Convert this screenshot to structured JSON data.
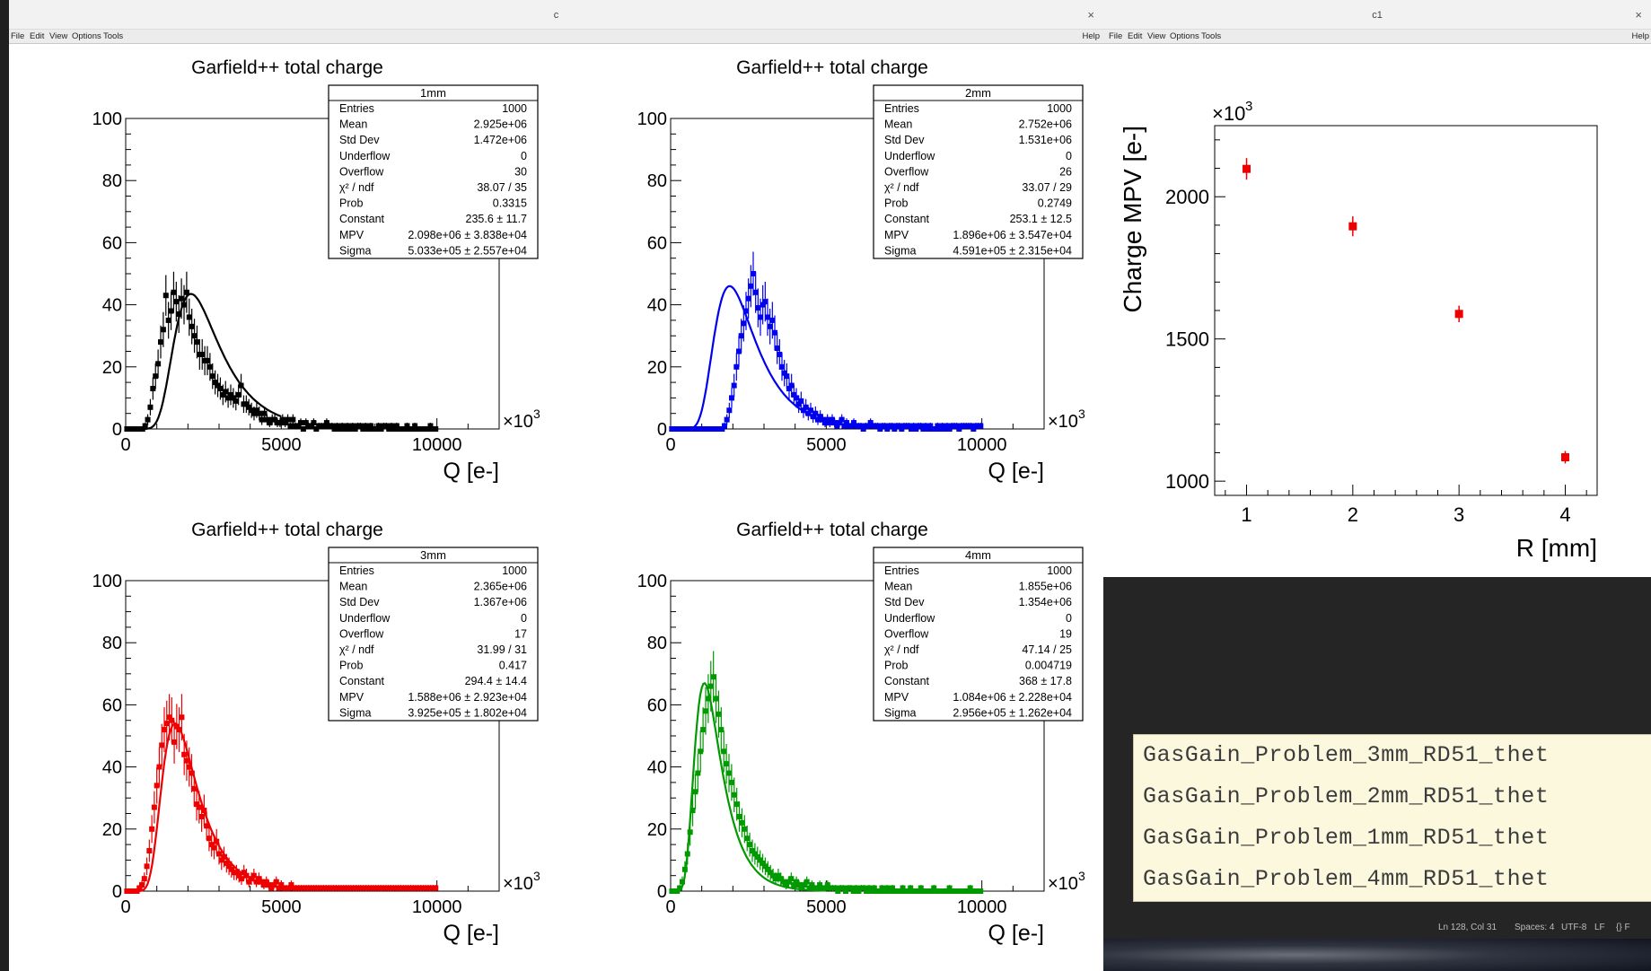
{
  "window_left": {
    "title": "c",
    "close_glyph": "×",
    "menu": [
      "File",
      "Edit",
      "View",
      "Options",
      "Tools"
    ],
    "help": "Help"
  },
  "window_right": {
    "title": "c1",
    "close_glyph": "×",
    "menu": [
      "File",
      "Edit",
      "View",
      "Options",
      "Tools"
    ],
    "help": "Help"
  },
  "chart_data": [
    {
      "type": "bar",
      "title": "Garfield++ total charge",
      "xlabel": "Q [e-]",
      "x_multiplier": "×10",
      "x_multiplier_exp": "3",
      "xlim": [
        0,
        12000
      ],
      "ylim": [
        0,
        100
      ],
      "xticks": [
        "0",
        "5000",
        "10000"
      ],
      "yticks": [
        "0",
        "20",
        "40",
        "60",
        "80",
        "100"
      ],
      "color": "#000000",
      "stats": {
        "name": "1mm",
        "rows": [
          [
            "Entries",
            "1000"
          ],
          [
            "Mean",
            "2.925e+06"
          ],
          [
            "Std Dev",
            "1.472e+06"
          ],
          [
            "Underflow",
            "0"
          ],
          [
            "Overflow",
            "30"
          ],
          [
            "χ² / ndf",
            "38.07 / 35"
          ],
          [
            "Prob",
            "0.3315"
          ],
          [
            "Constant",
            "235.6 ± 11.7"
          ],
          [
            "MPV",
            "2.098e+06 ± 3.838e+04"
          ],
          [
            "Sigma",
            "5.033e+05 ± 2.557e+04"
          ]
        ]
      },
      "fit": {
        "constant": 43.5,
        "mpv": 2098,
        "sigma": 503.3
      },
      "values": [
        0,
        0,
        0,
        0,
        0,
        0,
        0,
        1,
        3,
        7,
        13,
        17,
        21,
        28,
        32,
        43,
        35,
        38,
        44,
        41,
        37,
        42,
        40,
        44,
        36,
        33,
        30,
        28,
        24,
        24,
        22,
        22,
        20,
        17,
        15,
        14,
        13,
        11,
        12,
        10,
        11,
        10,
        9,
        11,
        14,
        8,
        8,
        7,
        6,
        5,
        6,
        5,
        3,
        5,
        3,
        2,
        3,
        3,
        2,
        2,
        3,
        2,
        3,
        1,
        3,
        1,
        1,
        2,
        0,
        2,
        1,
        1,
        2,
        0,
        1,
        1,
        1,
        2,
        1,
        1,
        0,
        1,
        0,
        1,
        0,
        1,
        0,
        1,
        0,
        1,
        1,
        0,
        1,
        0,
        1,
        0,
        0,
        1,
        0,
        1,
        1,
        0,
        1,
        0,
        1,
        0,
        0,
        0,
        1,
        0,
        0,
        1,
        0,
        0,
        0,
        0,
        0,
        1,
        0,
        0
      ]
    },
    {
      "type": "bar",
      "title": "Garfield++ total charge",
      "xlabel": "Q [e-]",
      "x_multiplier": "×10",
      "x_multiplier_exp": "3",
      "xlim": [
        0,
        12000
      ],
      "ylim": [
        0,
        100
      ],
      "xticks": [
        "0",
        "5000",
        "10000"
      ],
      "yticks": [
        "0",
        "20",
        "40",
        "60",
        "80",
        "100"
      ],
      "color": "#0000ee",
      "stats": {
        "name": "2mm",
        "rows": [
          [
            "Entries",
            "1000"
          ],
          [
            "Mean",
            "2.752e+06"
          ],
          [
            "Std Dev",
            "1.531e+06"
          ],
          [
            "Underflow",
            "0"
          ],
          [
            "Overflow",
            "26"
          ],
          [
            "χ² / ndf",
            "33.07 / 29"
          ],
          [
            "Prob",
            "0.2749"
          ],
          [
            "Constant",
            "253.1 ± 12.5"
          ],
          [
            "MPV",
            "1.896e+06 ± 3.547e+04"
          ],
          [
            "Sigma",
            "4.591e+05 ± 2.315e+04"
          ]
        ]
      },
      "fit": {
        "constant": 46,
        "mpv": 1896,
        "sigma": 459.1
      },
      "values": [
        0,
        0,
        0,
        0,
        0,
        0,
        0,
        0,
        0,
        0,
        0,
        0,
        0,
        0,
        0,
        0,
        0,
        0,
        0,
        0,
        0,
        0,
        1,
        3,
        6,
        10,
        14,
        20,
        25,
        30,
        34,
        38,
        42,
        46,
        50,
        44,
        39,
        36,
        40,
        41,
        36,
        33,
        35,
        31,
        26,
        24,
        20,
        18,
        17,
        13,
        14,
        11,
        10,
        8,
        9,
        6,
        7,
        5,
        6,
        4,
        5,
        3,
        4,
        3,
        2,
        3,
        2,
        3,
        2,
        1,
        2,
        3,
        1,
        2,
        1,
        1,
        2,
        1,
        1,
        1,
        0,
        1,
        1,
        2,
        1,
        1,
        1,
        0,
        1,
        1,
        0,
        1,
        1,
        0,
        1,
        1,
        0,
        1,
        1,
        1,
        0,
        1,
        0,
        1,
        1,
        0,
        1,
        0,
        1,
        0,
        0,
        1,
        0,
        1,
        0,
        1,
        0,
        1,
        1,
        1,
        0,
        1,
        1,
        1,
        1,
        1,
        0,
        1,
        1,
        1
      ]
    },
    {
      "type": "bar",
      "title": "Garfield++ total charge",
      "xlabel": "Q [e-]",
      "x_multiplier": "×10",
      "x_multiplier_exp": "3",
      "xlim": [
        0,
        12000
      ],
      "ylim": [
        0,
        100
      ],
      "xticks": [
        "0",
        "5000",
        "10000"
      ],
      "yticks": [
        "0",
        "20",
        "40",
        "60",
        "80",
        "100"
      ],
      "color": "#ee0000",
      "stats": {
        "name": "3mm",
        "rows": [
          [
            "Entries",
            "1000"
          ],
          [
            "Mean",
            "2.365e+06"
          ],
          [
            "Std Dev",
            "1.367e+06"
          ],
          [
            "Underflow",
            "0"
          ],
          [
            "Overflow",
            "17"
          ],
          [
            "χ² / ndf",
            "31.99 / 31"
          ],
          [
            "Prob",
            "0.417"
          ],
          [
            "Constant",
            "294.4 ± 14.4"
          ],
          [
            "MPV",
            "1.588e+06 ± 2.923e+04"
          ],
          [
            "Sigma",
            "3.925e+05 ± 1.802e+04"
          ]
        ]
      },
      "fit": {
        "constant": 54,
        "mpv": 1588,
        "sigma": 392.5
      },
      "values": [
        0,
        0,
        0,
        0,
        0,
        1,
        2,
        4,
        8,
        13,
        20,
        27,
        34,
        40,
        47,
        52,
        54,
        56,
        55,
        48,
        53,
        52,
        56,
        44,
        42,
        40,
        38,
        33,
        28,
        27,
        24,
        26,
        21,
        17,
        15,
        14,
        16,
        12,
        10,
        11,
        9,
        8,
        7,
        6,
        6,
        5,
        4,
        6,
        5,
        3,
        4,
        5,
        3,
        4,
        3,
        2,
        3,
        2,
        1,
        2,
        3,
        1,
        2,
        1,
        1,
        1,
        2,
        1,
        1,
        1,
        1,
        1,
        1,
        1,
        1,
        1,
        1,
        1,
        1,
        1,
        1,
        1,
        1,
        1,
        1,
        1,
        1,
        1,
        1,
        1,
        1,
        1,
        1,
        1,
        1,
        1,
        1,
        1,
        1,
        1,
        1,
        1,
        1,
        1,
        1,
        1,
        1,
        1,
        1,
        1,
        1,
        1,
        1,
        1,
        1,
        1,
        1,
        1,
        1,
        1,
        1,
        1,
        1,
        1,
        1
      ]
    },
    {
      "type": "bar",
      "title": "Garfield++ total charge",
      "xlabel": "Q [e-]",
      "x_multiplier": "×10",
      "x_multiplier_exp": "3",
      "xlim": [
        0,
        12000
      ],
      "ylim": [
        0,
        100
      ],
      "xticks": [
        "0",
        "5000",
        "10000"
      ],
      "yticks": [
        "0",
        "20",
        "40",
        "60",
        "80",
        "100"
      ],
      "color": "#009900",
      "stats": {
        "name": "4mm",
        "rows": [
          [
            "Entries",
            "1000"
          ],
          [
            "Mean",
            "1.855e+06"
          ],
          [
            "Std Dev",
            "1.354e+06"
          ],
          [
            "Underflow",
            "0"
          ],
          [
            "Overflow",
            "19"
          ],
          [
            "χ² / ndf",
            "47.14 / 25"
          ],
          [
            "Prob",
            "0.004719"
          ],
          [
            "Constant",
            "368 ± 17.8"
          ],
          [
            "MPV",
            "1.084e+06 ± 2.228e+04"
          ],
          [
            "Sigma",
            "2.956e+05 ± 1.262e+04"
          ]
        ]
      },
      "fit": {
        "constant": 67,
        "mpv": 1084,
        "sigma": 295.6
      },
      "values": [
        0,
        0,
        0,
        1,
        3,
        7,
        12,
        19,
        26,
        32,
        38,
        45,
        52,
        58,
        62,
        66,
        69,
        62,
        57,
        52,
        45,
        41,
        38,
        35,
        31,
        28,
        24,
        22,
        20,
        17,
        15,
        13,
        12,
        11,
        10,
        9,
        8,
        7,
        6,
        5,
        4,
        5,
        4,
        3,
        2,
        3,
        4,
        2,
        3,
        2,
        1,
        2,
        3,
        1,
        2,
        1,
        1,
        2,
        1,
        1,
        2,
        1,
        1,
        1,
        0,
        1,
        1,
        0,
        1,
        1,
        0,
        1,
        0,
        1,
        1,
        0,
        1,
        0,
        1,
        0,
        0,
        1,
        0,
        1,
        0,
        1,
        0,
        0,
        0,
        1,
        0,
        0,
        1,
        0,
        0,
        0,
        1,
        0,
        0,
        0,
        0,
        1,
        0,
        0,
        0,
        0,
        0,
        1,
        0,
        0,
        0,
        0,
        0,
        0,
        0,
        1,
        0,
        0,
        0,
        0
      ]
    },
    {
      "type": "scatter",
      "title": "",
      "xlabel": "R [mm]",
      "ylabel": "Charge MPV [e-]",
      "y_multiplier": "×10",
      "y_multiplier_exp": "3",
      "xlim": [
        0.7,
        4.3
      ],
      "ylim": [
        950,
        2250
      ],
      "xticks": [
        "1",
        "2",
        "3",
        "4"
      ],
      "yticks": [
        "1000",
        "1500",
        "2000"
      ],
      "color": "#ee0000",
      "series": [
        {
          "x": [
            1,
            2,
            3,
            4
          ],
          "y": [
            2098,
            1896,
            1588,
            1084
          ],
          "yerr": [
            38,
            35,
            29,
            22
          ]
        }
      ]
    }
  ],
  "file_list": [
    "GasGain_Problem_3mm_RD51_thet",
    "GasGain_Problem_2mm_RD51_thet",
    "GasGain_Problem_1mm_RD51_thet",
    "GasGain_Problem_4mm_RD51_thet"
  ],
  "status_bar": {
    "position": "Ln 128, Col 31",
    "spaces": "Spaces: 4",
    "encoding": "UTF-8",
    "eol": "LF",
    "lang": "{} F"
  }
}
